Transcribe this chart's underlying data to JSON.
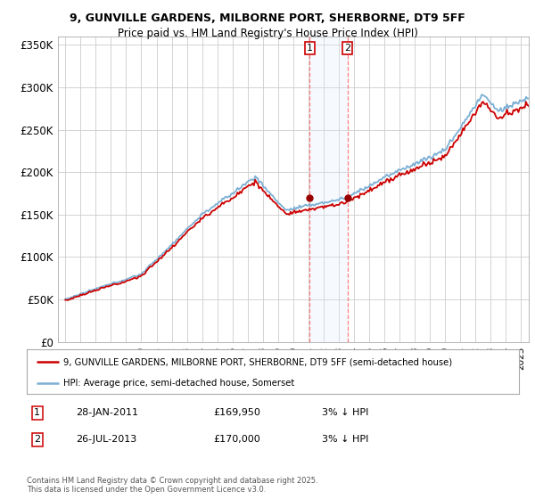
{
  "title": "9, GUNVILLE GARDENS, MILBORNE PORT, SHERBORNE, DT9 5FF",
  "subtitle": "Price paid vs. HM Land Registry's House Price Index (HPI)",
  "legend_line1": "9, GUNVILLE GARDENS, MILBORNE PORT, SHERBORNE, DT9 5FF (semi-detached house)",
  "legend_line2": "HPI: Average price, semi-detached house, Somerset",
  "footnote": "Contains HM Land Registry data © Crown copyright and database right 2025.\nThis data is licensed under the Open Government Licence v3.0.",
  "transaction1": {
    "label": "1",
    "date": "28-JAN-2011",
    "price": "£169,950",
    "note": "3% ↓ HPI"
  },
  "transaction2": {
    "label": "2",
    "date": "26-JUL-2013",
    "price": "£170,000",
    "note": "3% ↓ HPI"
  },
  "vline1_x": 2011.08,
  "vline2_x": 2013.57,
  "marker1_y": 169950,
  "marker2_y": 170000,
  "ylim": [
    0,
    360000
  ],
  "xlim_start": 1994.5,
  "xlim_end": 2025.5,
  "yticks": [
    0,
    50000,
    100000,
    150000,
    200000,
    250000,
    300000,
    350000
  ],
  "ytick_labels": [
    "£0",
    "£50K",
    "£100K",
    "£150K",
    "£200K",
    "£250K",
    "£300K",
    "£350K"
  ],
  "line_color_red": "#cc0000",
  "line_color_blue": "#7bafd4",
  "background_color": "#ffffff",
  "grid_color": "#cccccc",
  "shade_color": "#ddeeff",
  "title_fontsize": 9,
  "subtitle_fontsize": 8.5
}
